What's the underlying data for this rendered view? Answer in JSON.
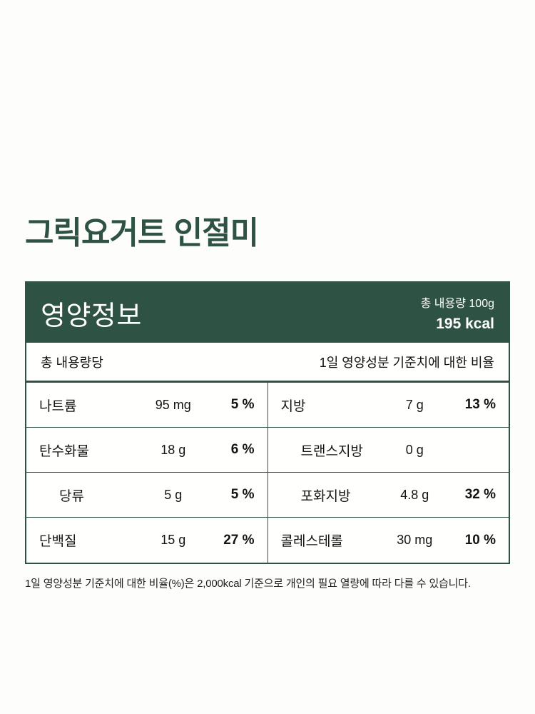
{
  "product": {
    "title": "그릭요거트 인절미"
  },
  "label": {
    "header": {
      "title": "영양정보",
      "serving": "총 내용량 100g",
      "calories": "195 kcal"
    },
    "subheader": {
      "left": "총 내용량당",
      "right": "1일 영양성분 기준치에 대한 비율"
    },
    "rows_left": [
      {
        "name": "나트륨",
        "amount": "95 mg",
        "dv": "5 %"
      },
      {
        "name": "탄수화물",
        "amount": "18 g",
        "dv": "6 %"
      },
      {
        "name": "당류",
        "amount": "5 g",
        "dv": "5 %"
      },
      {
        "name": "단백질",
        "amount": "15 g",
        "dv": "27 %"
      }
    ],
    "rows_right": [
      {
        "name": "지방",
        "amount": "7 g",
        "dv": "13 %"
      },
      {
        "name": "트랜스지방",
        "amount": "0 g",
        "dv": ""
      },
      {
        "name": "포화지방",
        "amount": "4.8 g",
        "dv": "32 %"
      },
      {
        "name": "콜레스테롤",
        "amount": "30 mg",
        "dv": "10 %"
      }
    ],
    "footnote": "1일 영양성분 기준치에 대한 비율(%)은 2,000kcal 기준으로 개인의 필요 열량에 따라 다를 수 있습니다.",
    "theme": {
      "green": "#2e5244",
      "background": "#fdfdfb"
    }
  }
}
